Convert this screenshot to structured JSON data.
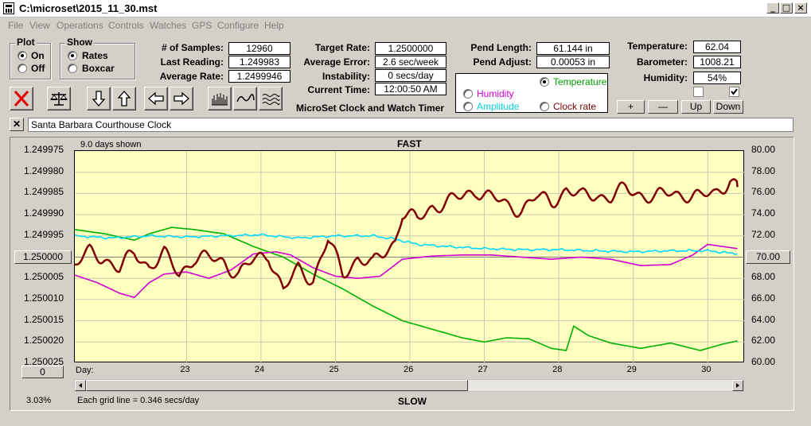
{
  "window": {
    "title": "C:\\microset\\2015_11_30.mst",
    "minimize": "_",
    "maximize": "□",
    "close": "×"
  },
  "menu": [
    "File",
    "View",
    "Operations",
    "Controls",
    "Watches",
    "GPS",
    "Configure",
    "Help"
  ],
  "plot_group": {
    "title": "Plot",
    "on_label": "On",
    "off_label": "Off",
    "selected": "On"
  },
  "show_group": {
    "title": "Show",
    "rates_label": "Rates",
    "boxcar_label": "Boxcar",
    "selected": "Rates"
  },
  "stats": {
    "samples_label": "# of Samples:",
    "samples_value": "12960",
    "last_reading_label": "Last Reading:",
    "last_reading_value": "1.249983",
    "average_rate_label": "Average Rate:",
    "average_rate_value": "1.2499946",
    "target_rate_label": "Target Rate:",
    "target_rate_value": "1.2500000",
    "average_error_label": "Average Error:",
    "average_error_value": "2.6 sec/week",
    "instability_label": "Instability:",
    "instability_value": "0 secs/day",
    "current_time_label": "Current Time:",
    "current_time_value": "12:00:50 AM",
    "app_caption": "MicroSet Clock and Watch Timer",
    "pend_length_label": "Pend Length:",
    "pend_length_value": "61.144 in",
    "pend_adjust_label": "Pend Adjust:",
    "pend_adjust_value": "0.00053 in",
    "temperature_label": "Temperature:",
    "temperature_value": "62.04",
    "barometer_label": "Barometer:",
    "barometer_value": "1008.21",
    "humidity_label": "Humidity:",
    "humidity_value": "54%"
  },
  "trace_select": {
    "temperature": "Temperature",
    "humidity": "Humidity",
    "amplitude": "Amplitude",
    "clock_rate": "Clock rate",
    "selected": "Temperature",
    "colors": {
      "temperature": "#00a000",
      "humidity": "#d000d0",
      "amplitude": "#00e0e0",
      "clock_rate": "#800000"
    }
  },
  "checkboxes": {
    "left_checked": false,
    "right_checked": true
  },
  "adjust_buttons": {
    "plus": "+",
    "minus": "—",
    "up": "Up",
    "down": "Down"
  },
  "toolbar": {
    "icons": [
      "close-x-icon",
      "balance-scale-icon",
      "arrow-down-icon",
      "arrow-up-icon",
      "arrow-left-icon",
      "arrow-right-icon",
      "bar-histogram-icon",
      "wave-icon",
      "multi-wave-icon"
    ]
  },
  "clock_name": {
    "close": "✕",
    "value": "Santa Barbara Courthouse Clock"
  },
  "chart_header": {
    "days_shown": "9.0 days shown",
    "fast_label": "FAST",
    "slow_label": "SLOW",
    "center_value": "1.250000",
    "right_center_value": "70.00",
    "bottom_left_value": "0",
    "percent": "3.03%",
    "grid_note": "Each grid line = 0.346 secs/day",
    "day_label": "Day:"
  },
  "chart_data": {
    "type": "line",
    "x_axis": {
      "label": "Day:",
      "ticks": [
        23,
        24,
        25,
        26,
        27,
        28,
        29,
        30
      ],
      "range": [
        22.0,
        31.0
      ]
    },
    "y_left": {
      "ticks": [
        "1.249975",
        "1.249980",
        "1.249985",
        "1.249990",
        "1.249995",
        "1.250000",
        "1.250005",
        "1.250010",
        "1.250015",
        "1.250020",
        "1.250025"
      ],
      "range_top": 1.249975,
      "range_bottom": 1.250025
    },
    "y_right": {
      "ticks": [
        "80.00",
        "78.00",
        "76.00",
        "74.00",
        "72.00",
        "70.00",
        "68.00",
        "66.00",
        "64.00",
        "62.00",
        "60.00"
      ],
      "range": [
        60,
        80
      ]
    },
    "grid": true,
    "series": [
      {
        "name": "Temperature",
        "color": "#00b000",
        "axis": "right",
        "x": [
          22.0,
          22.4,
          22.8,
          23.0,
          23.3,
          23.6,
          24.0,
          24.4,
          24.8,
          25.2,
          25.6,
          26.0,
          26.4,
          26.8,
          27.2,
          27.5,
          27.8,
          28.1,
          28.4,
          28.6,
          28.7,
          28.9,
          29.2,
          29.6,
          30.0,
          30.4,
          30.7,
          30.9
        ],
        "y": [
          72.6,
          72.2,
          71.6,
          72.2,
          72.8,
          72.6,
          72.2,
          71.0,
          70.0,
          68.4,
          67.0,
          65.4,
          64.0,
          63.2,
          62.4,
          62.0,
          62.4,
          62.3,
          61.4,
          61.2,
          63.5,
          62.6,
          61.9,
          61.4,
          61.9,
          61.2,
          61.8,
          62.1
        ]
      },
      {
        "name": "Humidity",
        "color": "#d000d0",
        "axis": "right",
        "x": [
          22.0,
          22.3,
          22.6,
          22.8,
          23.0,
          23.2,
          23.5,
          23.8,
          24.1,
          24.4,
          24.7,
          24.9,
          25.2,
          25.5,
          25.8,
          26.1,
          26.4,
          26.8,
          27.2,
          27.6,
          28.0,
          28.4,
          28.8,
          29.2,
          29.6,
          30.0,
          30.3,
          30.5,
          30.7,
          30.9
        ],
        "y": [
          68.3,
          67.6,
          66.6,
          66.2,
          67.6,
          68.4,
          68.6,
          68.0,
          68.8,
          70.3,
          70.5,
          70.2,
          69.0,
          68.2,
          68.0,
          68.2,
          69.8,
          70.1,
          70.2,
          70.2,
          70.0,
          69.8,
          70.0,
          69.8,
          69.2,
          69.3,
          70.2,
          71.2,
          71.0,
          70.8
        ]
      },
      {
        "name": "Amplitude",
        "color": "#00d8ff",
        "axis": "right",
        "x": [
          22.0,
          22.5,
          23.0,
          23.5,
          24.0,
          24.5,
          25.0,
          25.5,
          26.0,
          26.3,
          26.6,
          27.0,
          27.5,
          28.0,
          28.5,
          29.0,
          29.5,
          30.0,
          30.5,
          30.9
        ],
        "y": [
          72.0,
          71.8,
          72.0,
          71.9,
          72.0,
          72.1,
          71.8,
          72.0,
          72.0,
          71.7,
          71.2,
          71.0,
          70.8,
          70.7,
          70.7,
          70.6,
          70.5,
          70.6,
          70.6,
          70.3
        ]
      },
      {
        "name": "Clock rate",
        "color": "#800000",
        "axis": "left",
        "x": [
          22.0,
          22.2,
          22.4,
          22.6,
          22.8,
          23.0,
          23.2,
          23.4,
          23.6,
          23.8,
          24.0,
          24.2,
          24.4,
          24.6,
          24.8,
          25.0,
          25.2,
          25.4,
          25.6,
          25.8,
          26.0,
          26.2,
          26.3,
          26.4,
          26.6,
          26.8,
          27.0,
          27.2,
          27.4,
          27.6,
          27.8,
          28.0,
          28.2,
          28.4,
          28.6,
          28.8,
          29.0,
          29.2,
          29.4,
          29.6,
          29.8,
          30.0,
          30.2,
          30.4,
          30.6,
          30.8,
          30.9
        ],
        "y": [
          1.250002,
          1.249999,
          1.25,
          1.250003,
          1.249999,
          1.250002,
          1.2499995,
          1.250004,
          1.25,
          1.2500005,
          1.250001,
          1.250004,
          1.250001,
          1.249999,
          1.250008,
          1.250003,
          1.250005,
          1.249996,
          1.250004,
          1.25,
          1.250002,
          1.249998,
          1.249996,
          1.2499895,
          1.2499915,
          1.249988,
          1.249987,
          1.249986,
          1.249984,
          1.249986,
          1.249988,
          1.2499885,
          1.249986,
          1.249987,
          1.249984,
          1.249986,
          1.249985,
          1.249986,
          1.249984,
          1.249985,
          1.249986,
          1.249985,
          1.249985,
          1.249986,
          1.249985,
          1.2499815,
          1.2499835
        ]
      }
    ]
  }
}
